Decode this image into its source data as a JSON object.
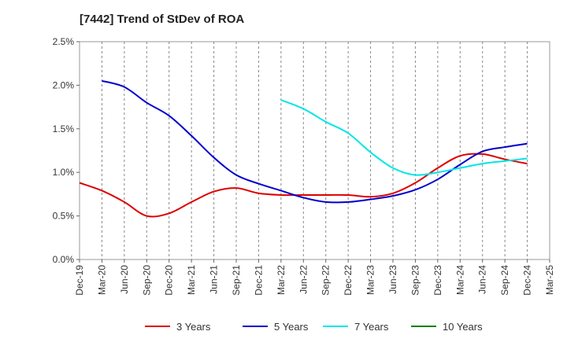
{
  "chart_data": {
    "type": "line",
    "title": "[7442]  Trend of StDev of ROA",
    "xlabel": "",
    "ylabel": "",
    "ylim": [
      0,
      2.5
    ],
    "yticks": [
      0,
      0.5,
      1.0,
      1.5,
      2.0,
      2.5
    ],
    "ytick_labels": [
      "0.0%",
      "0.5%",
      "1.0%",
      "1.5%",
      "2.0%",
      "2.5%"
    ],
    "x_ticks": [
      "Dec-19",
      "Mar-20",
      "Jun-20",
      "Sep-20",
      "Dec-20",
      "Mar-21",
      "Jun-21",
      "Sep-21",
      "Dec-21",
      "Mar-22",
      "Jun-22",
      "Sep-22",
      "Dec-22",
      "Mar-23",
      "Jun-23",
      "Sep-23",
      "Dec-23",
      "Mar-24",
      "Jun-24",
      "Sep-24",
      "Dec-24",
      "Mar-25"
    ],
    "grid": "vertical dashed",
    "legend_position": "bottom",
    "series": [
      {
        "name": "3 Years",
        "color": "#dd0000",
        "start_index": 0,
        "values": [
          0.88,
          0.79,
          0.66,
          0.5,
          0.53,
          0.66,
          0.78,
          0.82,
          0.76,
          0.74,
          0.74,
          0.74,
          0.74,
          0.72,
          0.76,
          0.88,
          1.05,
          1.19,
          1.21,
          1.15,
          1.1
        ]
      },
      {
        "name": "5 Years",
        "color": "#0000cc",
        "start_index": 1,
        "values": [
          2.05,
          1.98,
          1.8,
          1.65,
          1.42,
          1.17,
          0.97,
          0.87,
          0.79,
          0.71,
          0.66,
          0.66,
          0.69,
          0.73,
          0.8,
          0.92,
          1.09,
          1.24,
          1.29,
          1.33
        ]
      },
      {
        "name": "7 Years",
        "color": "#00e6e6",
        "start_index": 9,
        "values": [
          1.83,
          1.73,
          1.58,
          1.45,
          1.23,
          1.05,
          0.97,
          1.0,
          1.05,
          1.1,
          1.13,
          1.16
        ]
      },
      {
        "name": "10 Years",
        "color": "#008000",
        "start_index": 0,
        "values": []
      }
    ]
  }
}
